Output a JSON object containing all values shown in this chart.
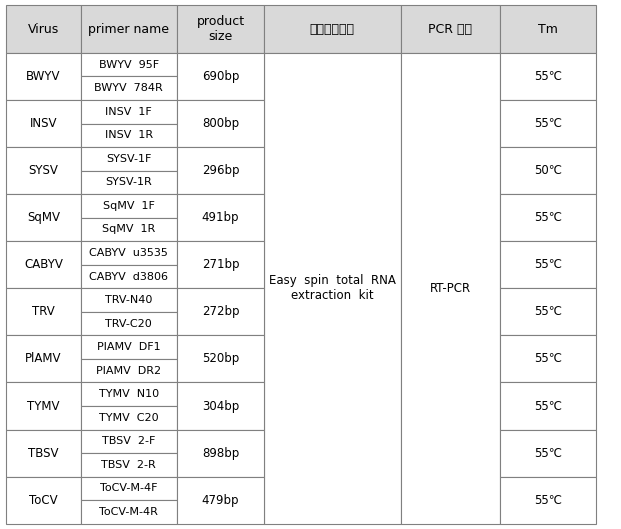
{
  "headers": [
    "Virus",
    "primer name",
    "product\nsize",
    "핵산추출키트",
    "PCR 방법",
    "Tm"
  ],
  "rows": [
    {
      "virus": "BWYV",
      "primers": [
        "BWYV  95F",
        "BWYV  784R"
      ],
      "product_size": "690bp",
      "nucleic_acid": "Easy  spin  total  RNA\nextraction  kit",
      "pcr_method": "RT-PCR",
      "tm": "55℃"
    },
    {
      "virus": "INSV",
      "primers": [
        "INSV  1F",
        "INSV  1R"
      ],
      "product_size": "800bp",
      "nucleic_acid": "",
      "pcr_method": "",
      "tm": "55℃"
    },
    {
      "virus": "SYSV",
      "primers": [
        "SYSV-1F",
        "SYSV-1R"
      ],
      "product_size": "296bp",
      "nucleic_acid": "",
      "pcr_method": "",
      "tm": "50℃"
    },
    {
      "virus": "SqMV",
      "primers": [
        "SqMV  1F",
        "SqMV  1R"
      ],
      "product_size": "491bp",
      "nucleic_acid": "",
      "pcr_method": "",
      "tm": "55℃"
    },
    {
      "virus": "CABYV",
      "primers": [
        "CABYV  u3535",
        "CABYV  d3806"
      ],
      "product_size": "271bp",
      "nucleic_acid": "",
      "pcr_method": "",
      "tm": "55℃"
    },
    {
      "virus": "TRV",
      "primers": [
        "TRV-N40",
        "TRV-C20"
      ],
      "product_size": "272bp",
      "nucleic_acid": "",
      "pcr_method": "",
      "tm": "55℃"
    },
    {
      "virus": "PlAMV",
      "primers": [
        "PlAMV  DF1",
        "PlAMV  DR2"
      ],
      "product_size": "520bp",
      "nucleic_acid": "",
      "pcr_method": "",
      "tm": "55℃"
    },
    {
      "virus": "TYMV",
      "primers": [
        "TYMV  N10",
        "TYMV  C20"
      ],
      "product_size": "304bp",
      "nucleic_acid": "",
      "pcr_method": "",
      "tm": "55℃"
    },
    {
      "virus": "TBSV",
      "primers": [
        "TBSV  2-F",
        "TBSV  2-R"
      ],
      "product_size": "898bp",
      "nucleic_acid": "",
      "pcr_method": "",
      "tm": "55℃"
    },
    {
      "virus": "ToCV",
      "primers": [
        "ToCV-M-4F",
        "ToCV-M-4R"
      ],
      "product_size": "479bp",
      "nucleic_acid": "",
      "pcr_method": "",
      "tm": "55℃"
    }
  ],
  "header_bg": "#d9d9d9",
  "cell_bg": "#ffffff",
  "border_color": "#808080",
  "text_color": "#000000",
  "header_fontsize": 9,
  "cell_fontsize": 8.5
}
